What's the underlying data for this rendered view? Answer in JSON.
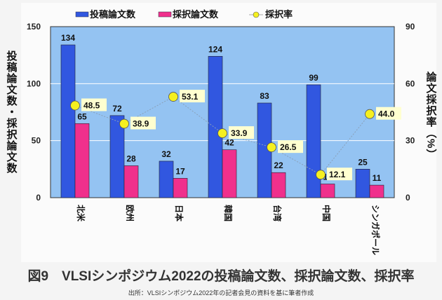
{
  "chart_data": {
    "type": "bar",
    "title": "図9　VLSIシンポジウム2022の投稿論文数、採択論文数、採択率",
    "source": "出所：VLSIシンポジウム2022年の記者会見の資料を基に筆者作成",
    "categories": [
      "北米",
      "欧州",
      "日本",
      "韓国",
      "台湾",
      "中国",
      "シンガポール"
    ],
    "series": [
      {
        "name": "投稿論文数",
        "type": "bar",
        "axis": "left",
        "color": "#3157e0",
        "values": [
          134,
          72,
          32,
          124,
          83,
          99,
          25
        ]
      },
      {
        "name": "採択論文数",
        "type": "bar",
        "axis": "left",
        "color": "#f0308c",
        "values": [
          65,
          28,
          17,
          42,
          22,
          12,
          11
        ]
      },
      {
        "name": "採択率",
        "type": "line",
        "axis": "right",
        "color": "#f5f020",
        "values": [
          48.5,
          38.9,
          53.1,
          33.9,
          26.5,
          12.1,
          44.0
        ]
      }
    ],
    "ylabel": "投稿論文数・採択論文数",
    "y2label": "論文採択率（%）",
    "ylim": [
      0,
      150
    ],
    "yticks": [
      0,
      50,
      100,
      150
    ],
    "y2lim": [
      0,
      90
    ],
    "y2ticks": [
      0,
      30,
      60,
      90
    ],
    "grid": true,
    "legend": "top",
    "plot_background": "#94c3f2"
  }
}
